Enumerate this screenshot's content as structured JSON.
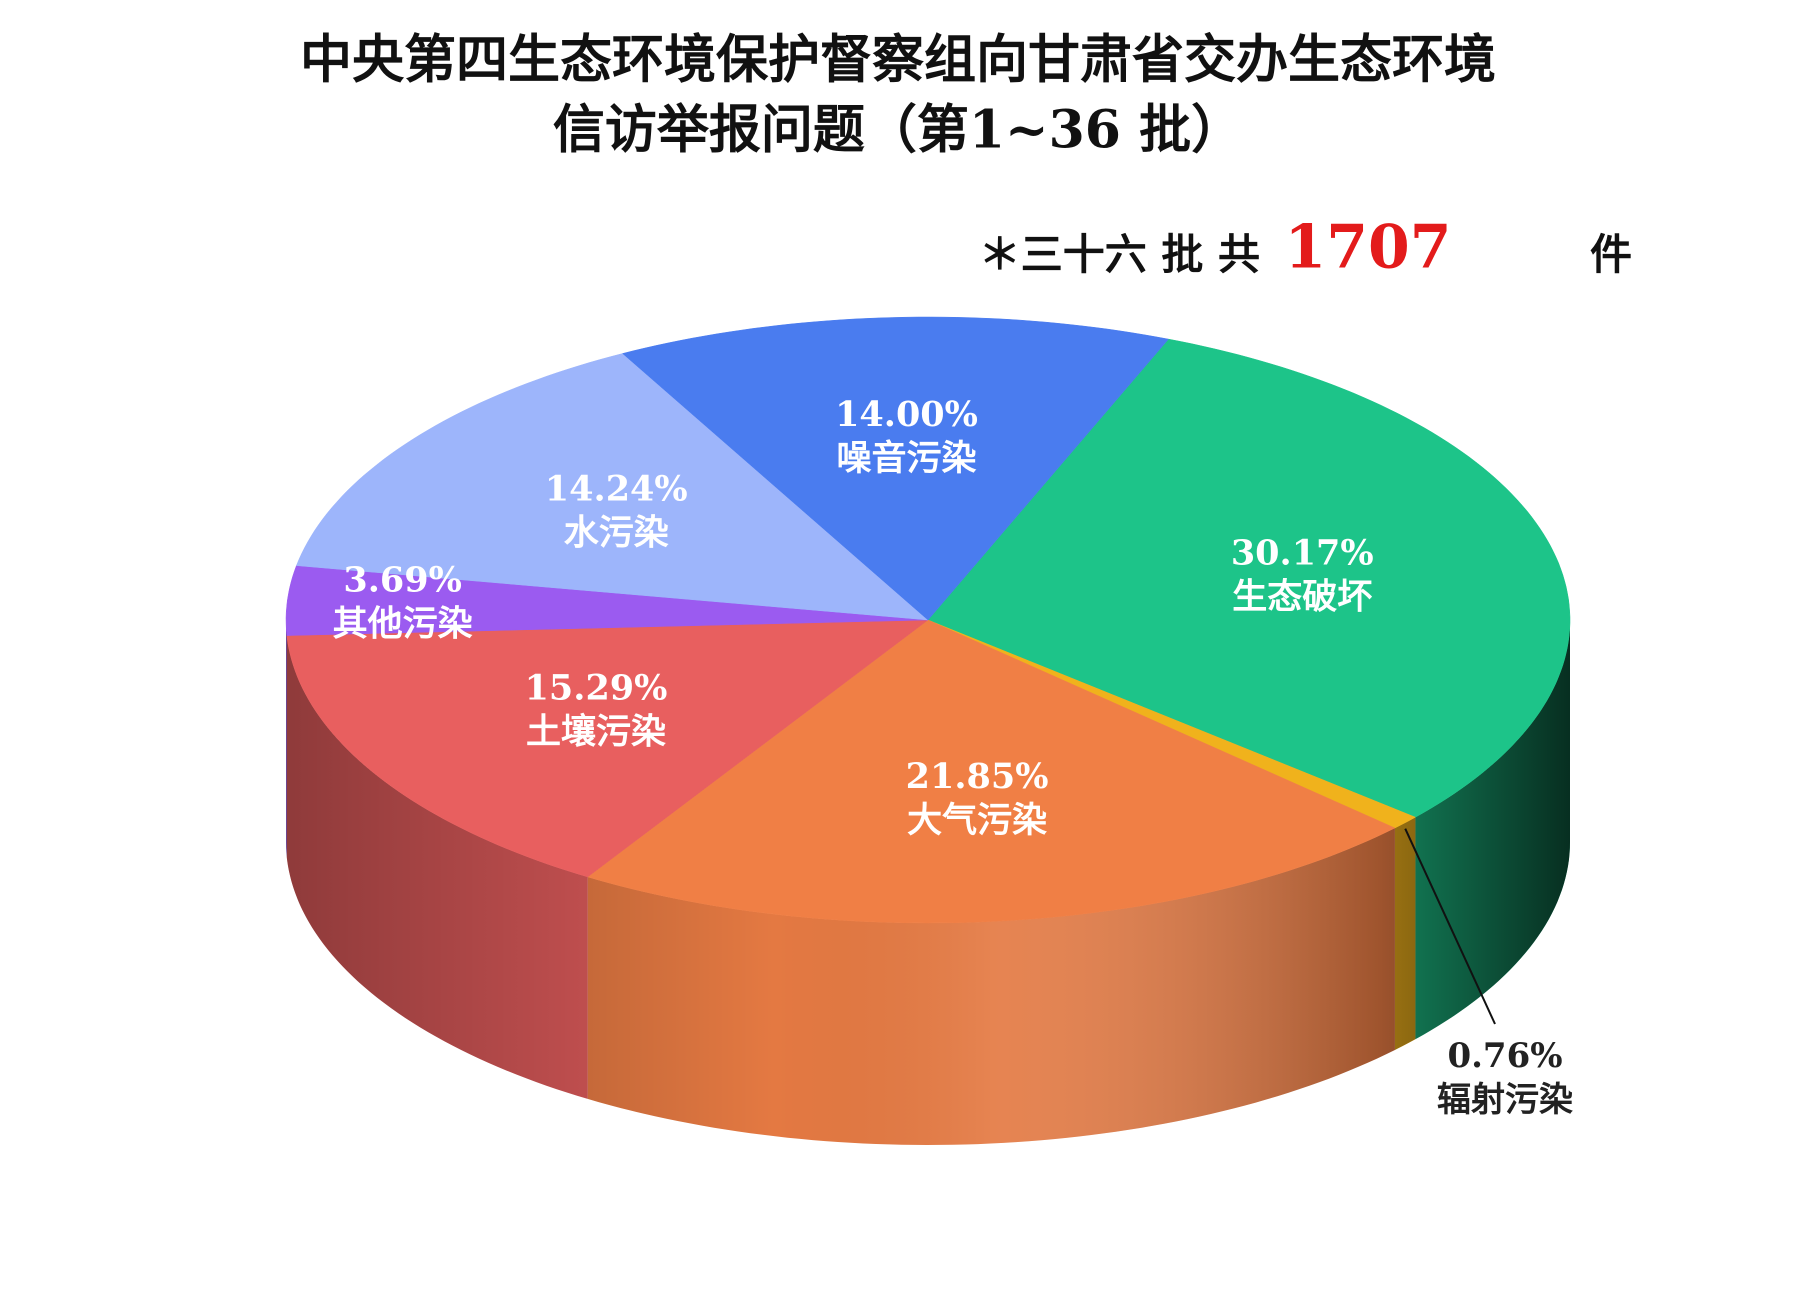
{
  "chart_data": {
    "type": "pie3d",
    "title": [
      "中央第四生态环境保护督察组向甘肃省交办生态环境",
      "信访举报问题（第1~36 批）"
    ],
    "annotation": {
      "prefix": "＊三十六 批 共",
      "total": 1707,
      "suffix": "件"
    },
    "categories": [
      "生态破坏",
      "辐射污染",
      "大气污染",
      "土壤污染",
      "其他污染",
      "水污染",
      "噪音污染"
    ],
    "values": [
      30.17,
      0.76,
      21.85,
      15.29,
      3.69,
      14.24,
      14.0
    ],
    "value_labels": [
      "30.17%",
      "0.76%",
      "21.85%",
      "15.29%",
      "3.69%",
      "14.24%",
      "14.00%"
    ],
    "colors": [
      "#1dc489",
      "#f0b21c",
      "#f07f45",
      "#e85f5f",
      "#9b5bf0",
      "#9db5fb",
      "#4a7cef"
    ]
  }
}
